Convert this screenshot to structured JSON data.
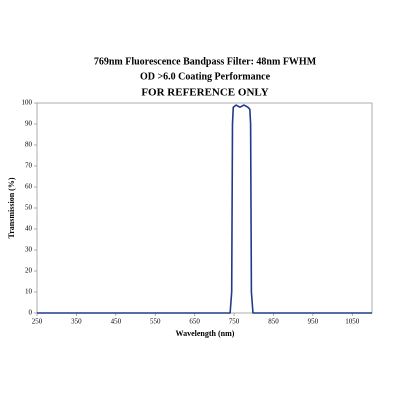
{
  "chart_data": {
    "type": "line",
    "title": "769nm Fluorescence Bandpass Filter: 48nm FWHM",
    "subtitle": "OD >6.0 Coating Performance",
    "note": "FOR REFERENCE ONLY",
    "x_label": "Wavelength (nm)",
    "y_label": "Transmission (%)",
    "x": [
      250,
      740,
      744,
      746,
      748,
      755,
      765,
      775,
      785,
      790,
      792,
      794,
      798,
      1100
    ],
    "series": [
      {
        "name": "Transmission",
        "color": "#1f3a8f",
        "values": [
          0,
          0,
          10,
          90,
          98,
          99,
          98,
          99,
          98,
          97,
          90,
          10,
          0,
          0
        ]
      }
    ],
    "xlim": [
      250,
      1100
    ],
    "xticks": [
      250,
      350,
      450,
      550,
      650,
      750,
      850,
      950,
      1050
    ],
    "ylim": [
      0,
      100
    ],
    "yticks": [
      0,
      10,
      20,
      30,
      40,
      50,
      60,
      70,
      80,
      90,
      100
    ],
    "grid": false
  }
}
